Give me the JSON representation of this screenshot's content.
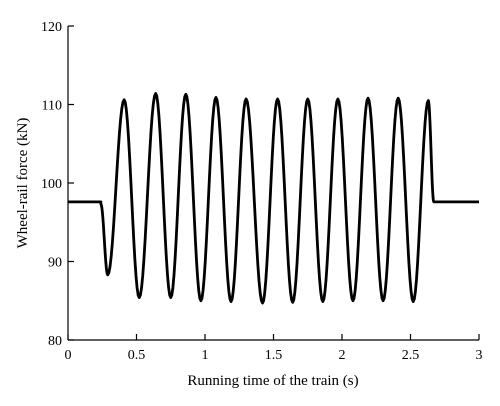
{
  "chart_data": {
    "type": "line",
    "xlabel": "Running time of the train (s)",
    "ylabel": "Wheel-rail force (kN)",
    "xlim": [
      0,
      3
    ],
    "ylim": [
      80,
      120
    ],
    "x_ticks": [
      0,
      0.5,
      1,
      1.5,
      2,
      2.5,
      3
    ],
    "x_tick_labels": [
      "0",
      "0.5",
      "1",
      "1.5",
      "2",
      "2.5",
      "3"
    ],
    "y_ticks": [
      80,
      90,
      100,
      110,
      120
    ],
    "y_tick_labels": [
      "80",
      "90",
      "100",
      "110",
      "120"
    ],
    "grid": false,
    "legend": "none",
    "line_color": "#000000",
    "series": [
      {
        "points": [
          [
            0,
            97.6
          ],
          [
            0.24,
            97.6
          ],
          [
            0.24,
            97.3
          ],
          [
            0.29,
            88.3
          ],
          [
            0.41,
            110.6
          ],
          [
            0.52,
            85.4
          ],
          [
            0.64,
            111.4
          ],
          [
            0.75,
            85.4
          ],
          [
            0.86,
            111.3
          ],
          [
            0.97,
            85.0
          ],
          [
            1.08,
            110.9
          ],
          [
            1.19,
            84.9
          ],
          [
            1.3,
            110.7
          ],
          [
            1.42,
            84.7
          ],
          [
            1.53,
            110.7
          ],
          [
            1.64,
            84.8
          ],
          [
            1.75,
            110.7
          ],
          [
            1.86,
            84.9
          ],
          [
            1.97,
            110.7
          ],
          [
            2.08,
            85.0
          ],
          [
            2.19,
            110.8
          ],
          [
            2.3,
            85.0
          ],
          [
            2.41,
            110.8
          ],
          [
            2.52,
            84.9
          ],
          [
            2.63,
            110.5
          ],
          [
            2.67,
            97.6
          ],
          [
            3.0,
            97.6
          ]
        ]
      }
    ]
  }
}
